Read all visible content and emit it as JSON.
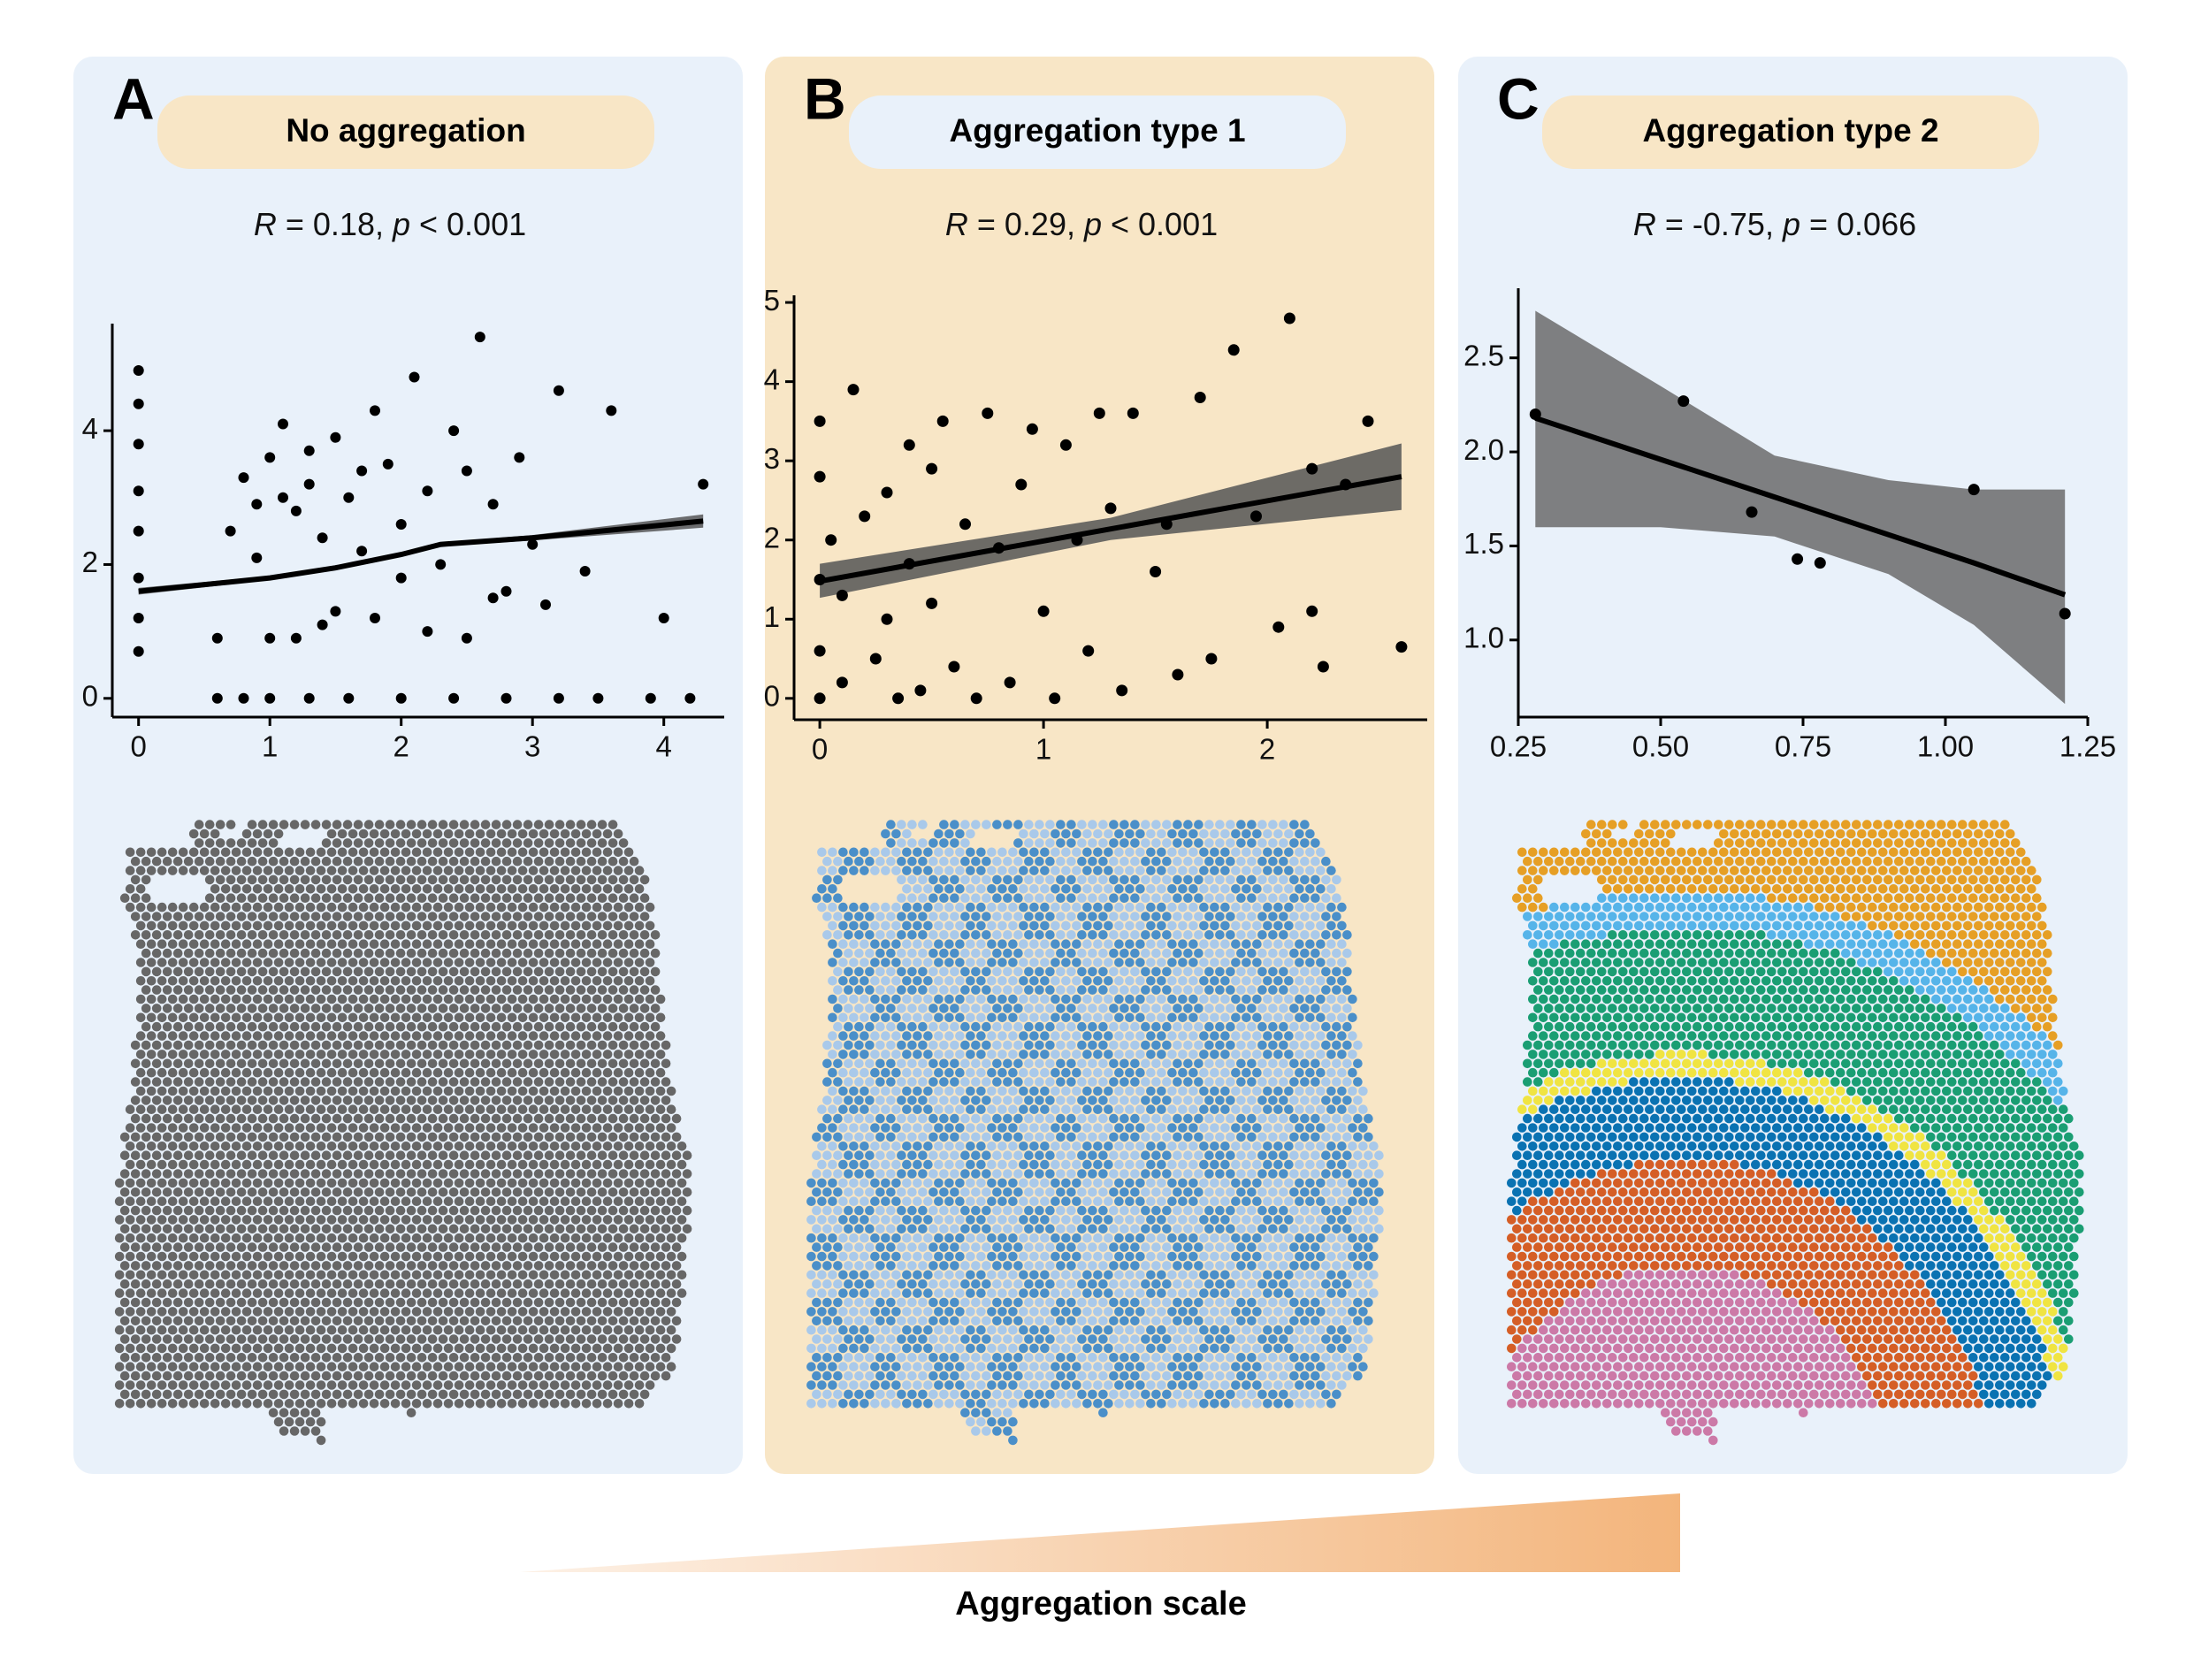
{
  "chart_data": [
    {
      "type": "scatter",
      "letter": "A",
      "title": "No aggregation",
      "stats": {
        "r_symbol": "R",
        "r_text": "= 0.18,",
        "p_symbol": "p",
        "p_text": "< 0.001"
      },
      "x": [
        0,
        0,
        0,
        0,
        0,
        0,
        0,
        0,
        0.6,
        0.8,
        1.0,
        1.3,
        1.6,
        2.0,
        2.4,
        2.8,
        3.2,
        3.5,
        3.9,
        4.2,
        0.7,
        0.8,
        0.9,
        1.0,
        1.1,
        1.2,
        1.3,
        1.4,
        1.5,
        1.6,
        1.7,
        1.8,
        1.9,
        2.0,
        2.1,
        2.2,
        2.3,
        2.4,
        2.5,
        2.6,
        2.7,
        2.8,
        2.9,
        3.0,
        3.2,
        3.4,
        3.6,
        4.0,
        4.3,
        1.2,
        1.5,
        2.2,
        2.7,
        1.0,
        1.8,
        0.6,
        2.5,
        3.1,
        1.4,
        2.0,
        1.1,
        1.3,
        0.9,
        1.7
      ],
      "y": [
        0.7,
        1.2,
        1.8,
        2.5,
        3.1,
        3.8,
        4.4,
        4.9,
        0,
        0,
        0,
        0,
        0,
        0,
        0,
        0,
        0,
        0,
        0,
        0,
        2.5,
        3.3,
        2.1,
        3.6,
        4.1,
        2.8,
        3.2,
        2.4,
        3.9,
        3.0,
        2.2,
        4.3,
        3.5,
        2.6,
        4.8,
        3.1,
        2.0,
        4.0,
        3.4,
        5.4,
        2.9,
        1.6,
        3.6,
        2.3,
        4.6,
        1.9,
        4.3,
        1.2,
        3.2,
        0.9,
        1.3,
        1.0,
        1.5,
        0.9,
        1.2,
        0.9,
        0.9,
        1.4,
        1.1,
        1.8,
        3.0,
        3.7,
        2.9,
        3.4
      ],
      "color": "#000000",
      "fit": {
        "x": [
          0,
          0.5,
          1,
          1.5,
          2,
          2.3,
          3,
          4.3
        ],
        "y": [
          1.6,
          1.7,
          1.8,
          1.95,
          2.15,
          2.3,
          2.4,
          2.65
        ],
        "lower": [
          1.55,
          1.66,
          1.77,
          1.92,
          2.12,
          2.27,
          2.36,
          2.55
        ],
        "upper": [
          1.65,
          1.74,
          1.83,
          1.98,
          2.18,
          2.33,
          2.44,
          2.75
        ]
      },
      "band_color": "#555555",
      "xlim": [
        -0.2,
        4.46
      ],
      "ylim": [
        -0.28,
        5.6
      ],
      "xticks": [
        0,
        1,
        2,
        3,
        4
      ],
      "yticks": [
        0,
        2,
        4
      ]
    },
    {
      "type": "scatter",
      "letter": "B",
      "title": "Aggregation type 1",
      "stats": {
        "r_symbol": "R",
        "r_text": "= 0.29,",
        "p_symbol": "p",
        "p_text": "< 0.001"
      },
      "x": [
        0,
        0,
        0,
        0,
        0,
        0.05,
        0.1,
        0.1,
        0.15,
        0.2,
        0.25,
        0.3,
        0.3,
        0.35,
        0.4,
        0.4,
        0.45,
        0.5,
        0.5,
        0.55,
        0.6,
        0.65,
        0.7,
        0.75,
        0.8,
        0.85,
        0.9,
        0.95,
        1.0,
        1.05,
        1.1,
        1.15,
        1.2,
        1.25,
        1.3,
        1.35,
        1.4,
        1.5,
        1.55,
        1.6,
        1.7,
        1.75,
        1.85,
        1.95,
        2.05,
        2.1,
        2.2,
        2.25,
        2.35,
        2.45,
        2.6,
        2.2
      ],
      "y": [
        0,
        0.6,
        1.5,
        2.8,
        3.5,
        2.0,
        0.2,
        1.3,
        3.9,
        2.3,
        0.5,
        1.0,
        2.6,
        0,
        3.2,
        1.7,
        0.1,
        2.9,
        1.2,
        3.5,
        0.4,
        2.2,
        0,
        3.6,
        1.9,
        0.2,
        2.7,
        3.4,
        1.1,
        0,
        3.2,
        2.0,
        0.6,
        3.6,
        2.4,
        0.1,
        3.6,
        1.6,
        2.2,
        0.3,
        3.8,
        0.5,
        4.4,
        2.3,
        0.9,
        4.8,
        1.1,
        0.4,
        2.7,
        3.5,
        0.65,
        2.9
      ],
      "color": "#000000",
      "fit": {
        "x": [
          0,
          1.3,
          2.6
        ],
        "y": [
          1.48,
          2.14,
          2.8
        ],
        "lower": [
          1.27,
          2.0,
          2.38
        ],
        "upper": [
          1.7,
          2.28,
          3.22
        ]
      },
      "band_color": "#555555",
      "xlim": [
        -0.115,
        2.715
      ],
      "ylim": [
        -0.27,
        5.09
      ],
      "xticks": [
        0,
        1,
        2
      ],
      "yticks": [
        0,
        1,
        2,
        3,
        4,
        5
      ]
    },
    {
      "type": "scatter",
      "letter": "C",
      "title": "Aggregation type 2",
      "stats": {
        "r_symbol": "R",
        "r_text": "= -0.75,",
        "p_symbol": "p",
        "p_text": "= 0.066"
      },
      "x": [
        0.28,
        0.54,
        0.66,
        0.74,
        0.78,
        1.05,
        1.21
      ],
      "y": [
        2.2,
        2.27,
        1.68,
        1.43,
        1.41,
        1.8,
        1.14
      ],
      "color": "#000000",
      "fit": {
        "x": [
          0.28,
          0.5,
          0.7,
          0.9,
          1.05,
          1.21
        ],
        "y": [
          2.18,
          1.96,
          1.76,
          1.56,
          1.41,
          1.24
        ],
        "lower": [
          1.6,
          1.6,
          1.55,
          1.35,
          1.08,
          0.66
        ],
        "upper": [
          2.75,
          2.35,
          1.98,
          1.85,
          1.8,
          1.8
        ]
      },
      "band_color": "#6b6b6b",
      "xlim": [
        0.25,
        1.25
      ],
      "ylim": [
        0.59,
        2.87
      ],
      "xticks": [
        0.25,
        {
          "value": 0.5,
          "label": "0.50"
        },
        0.75,
        {
          "value": 1,
          "label": "1.00"
        },
        1.25
      ],
      "yticks": [
        {
          "value": 1,
          "label": "1.0"
        },
        1.5,
        {
          "value": 2,
          "label": "2.0"
        },
        2.5
      ]
    }
  ],
  "scale_label": "Aggregation scale"
}
